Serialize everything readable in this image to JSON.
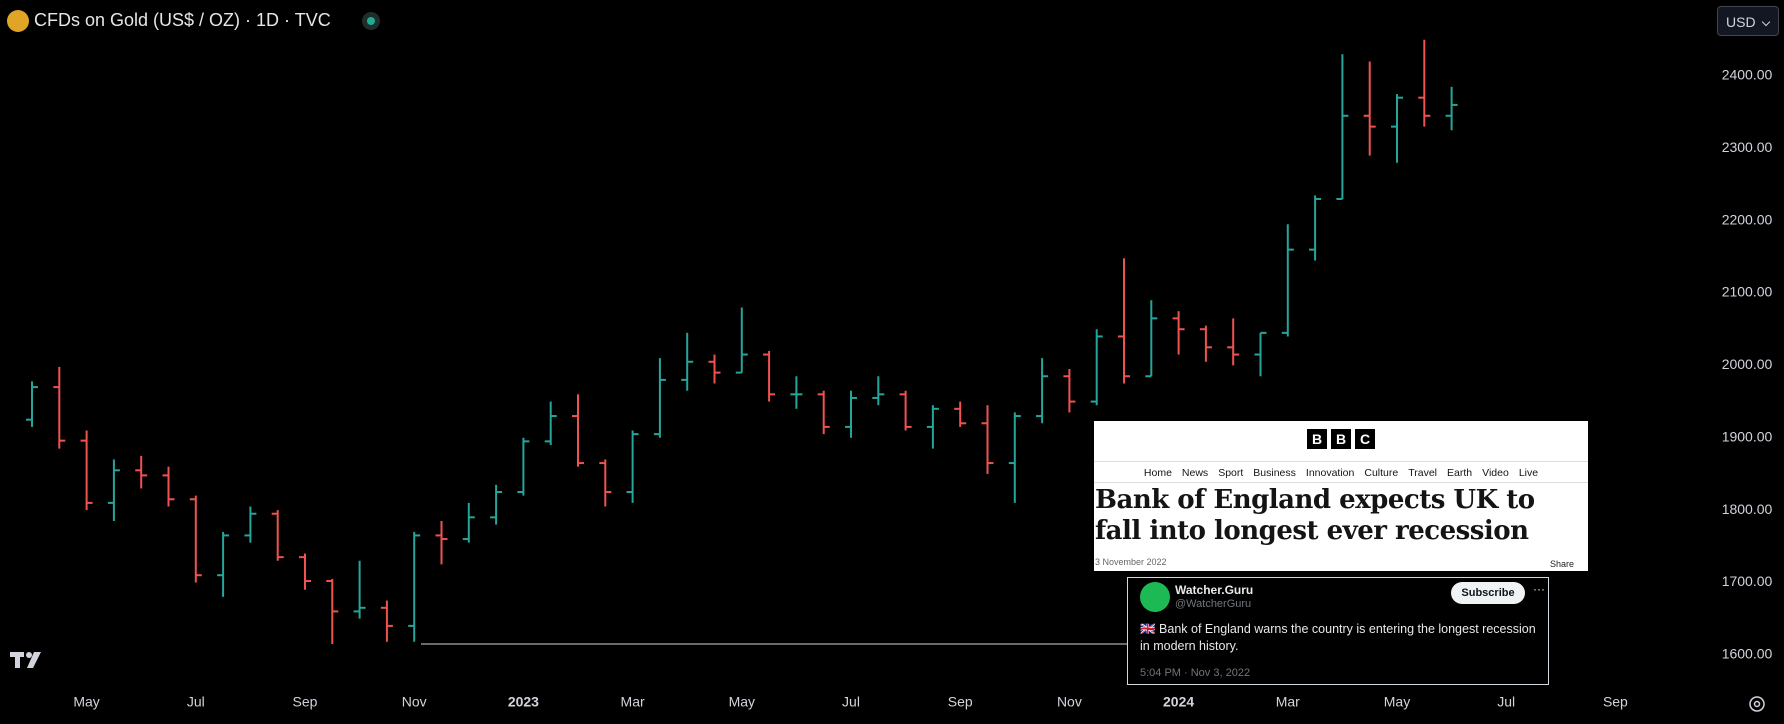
{
  "currency_button": "USD",
  "article": {
    "logo": [
      "B",
      "B",
      "C"
    ],
    "nav": [
      "Home",
      "News",
      "Sport",
      "Business",
      "Innovation",
      "Culture",
      "Travel",
      "Earth",
      "Video",
      "Live"
    ],
    "headline": "Bank of England expects UK to fall into longest ever recession",
    "date": "3 November 2022",
    "share": "Share"
  },
  "tweet": {
    "name": "Watcher.Guru",
    "handle": "@WatcherGuru",
    "button": "Subscribe",
    "text": "🇬🇧 Bank of England warns the country is entering the longest recession in modern history.",
    "time": "5:04 PM · Nov 3, 2022"
  },
  "chart_data": {
    "type": "ohlc",
    "title": "CFDs on Gold (US$ / OZ) · 1D · TVC",
    "categories": [
      null,
      null,
      "May",
      null,
      null,
      null,
      "Jul",
      null,
      null,
      null,
      "Sep",
      null,
      null,
      null,
      "Nov",
      null,
      null,
      null,
      "2023",
      null,
      null,
      null,
      "Mar",
      null,
      null,
      null,
      "May",
      null,
      null,
      null,
      "Jul",
      null,
      null,
      null,
      "Sep",
      null,
      null,
      null,
      "Nov",
      null,
      null,
      null,
      "2024",
      null,
      null,
      null,
      "Mar",
      null,
      null,
      null,
      "May",
      null,
      null,
      null,
      "Jul",
      null,
      null,
      null,
      "Sep",
      null,
      null,
      null
    ],
    "open": [
      1925,
      1970,
      1896,
      1810,
      1855,
      1848,
      1815,
      1710,
      1765,
      1795,
      1735,
      1702,
      1660,
      1665,
      1640,
      1765,
      1760,
      1790,
      1825,
      1895,
      1930,
      1865,
      1825,
      1905,
      1980,
      2005,
      1990,
      2015,
      1960,
      1960,
      1915,
      1955,
      1960,
      1915,
      1940,
      1920,
      1865,
      1930,
      1985,
      1950,
      2040,
      1985,
      2065,
      2050,
      2025,
      2015,
      2045,
      2160,
      2230,
      2345,
      2330,
      2370,
      2345,
      null,
      null,
      null,
      null,
      null,
      null,
      null,
      null,
      null
    ],
    "high": [
      1978,
      1998,
      1910,
      1870,
      1875,
      1860,
      1820,
      1770,
      1805,
      1800,
      1740,
      1705,
      1730,
      1675,
      1770,
      1785,
      1810,
      1835,
      1900,
      1950,
      1960,
      1870,
      1910,
      2010,
      2045,
      2015,
      2080,
      2020,
      1985,
      1965,
      1965,
      1985,
      1965,
      1945,
      1950,
      1945,
      1935,
      2010,
      1995,
      2050,
      2148,
      2090,
      2075,
      2055,
      2065,
      2045,
      2195,
      2235,
      2430,
      2420,
      2375,
      2450,
      2385,
      null,
      null,
      null,
      null,
      null,
      null,
      null,
      null,
      null
    ],
    "low": [
      1915,
      1885,
      1800,
      1785,
      1830,
      1805,
      1700,
      1680,
      1755,
      1730,
      1690,
      1615,
      1650,
      1618,
      1618,
      1725,
      1755,
      1780,
      1820,
      1890,
      1860,
      1805,
      1810,
      1900,
      1965,
      1975,
      1990,
      1950,
      1940,
      1905,
      1900,
      1945,
      1910,
      1885,
      1915,
      1850,
      1810,
      1920,
      1935,
      1945,
      1975,
      1985,
      2015,
      2005,
      2000,
      1985,
      2040,
      2145,
      2230,
      2290,
      2280,
      2330,
      2325,
      null,
      null,
      null,
      null,
      null,
      null,
      null,
      null,
      null
    ],
    "close": [
      1970,
      1896,
      1810,
      1855,
      1848,
      1815,
      1710,
      1765,
      1795,
      1735,
      1702,
      1660,
      1665,
      1640,
      1765,
      1760,
      1790,
      1825,
      1895,
      1930,
      1865,
      1825,
      1905,
      1980,
      2005,
      1990,
      2015,
      1960,
      1960,
      1915,
      1955,
      1960,
      1915,
      1940,
      1920,
      1865,
      1930,
      1985,
      1950,
      2040,
      1985,
      2065,
      2050,
      2025,
      2015,
      2045,
      2160,
      2230,
      2345,
      2330,
      2370,
      2345,
      2360,
      null,
      null,
      null,
      null,
      null,
      null,
      null,
      null,
      null
    ],
    "up_color": "#26a69a",
    "down_color": "#ef5350",
    "ylim": [
      1550,
      2505
    ],
    "yticks": [
      {
        "value": 1600,
        "label": "1600.00"
      },
      {
        "value": 1700,
        "label": "1700.00"
      },
      {
        "value": 1800,
        "label": "1800.00"
      },
      {
        "value": 1900,
        "label": "1900.00"
      },
      {
        "value": 2000,
        "label": "2000.00"
      },
      {
        "value": 2100,
        "label": "2100.00"
      },
      {
        "value": 2200,
        "label": "2200.00"
      },
      {
        "value": 2300,
        "label": "2300.00"
      },
      {
        "value": 2400,
        "label": "2400.00"
      }
    ],
    "grid": false
  }
}
